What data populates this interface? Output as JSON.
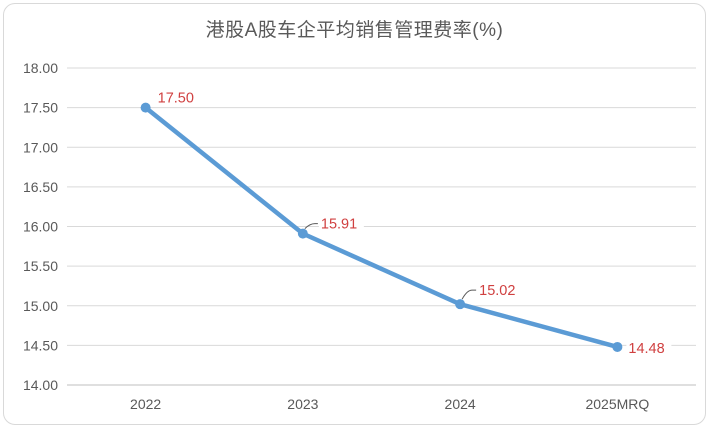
{
  "chart_data": {
    "type": "line",
    "title": "港股A股车企平均销售管理费率(%)",
    "categories": [
      "2022",
      "2023",
      "2024",
      "2025MRQ"
    ],
    "values": [
      17.5,
      15.91,
      15.02,
      14.48
    ],
    "data_labels": [
      "17.50",
      "15.91",
      "15.02",
      "14.48"
    ],
    "ylim": [
      14.0,
      18.0
    ],
    "ytick_step": 0.5,
    "ytick_labels": [
      "18.00",
      "17.50",
      "17.00",
      "16.50",
      "16.00",
      "15.50",
      "15.00",
      "14.50",
      "14.00"
    ],
    "xlabel": "",
    "ylabel": "",
    "grid": true,
    "legend": false,
    "colors": {
      "line": "#5B9BD5",
      "marker": "#5B9BD5",
      "data_label": "#D04040",
      "axis_text": "#595959",
      "title_text": "#595959",
      "gridline": "#D9D9D9",
      "axis_line": "#BFBFBF",
      "border": "#D9D9D9",
      "background": "#FFFFFF",
      "leader_line": "#595959"
    }
  }
}
